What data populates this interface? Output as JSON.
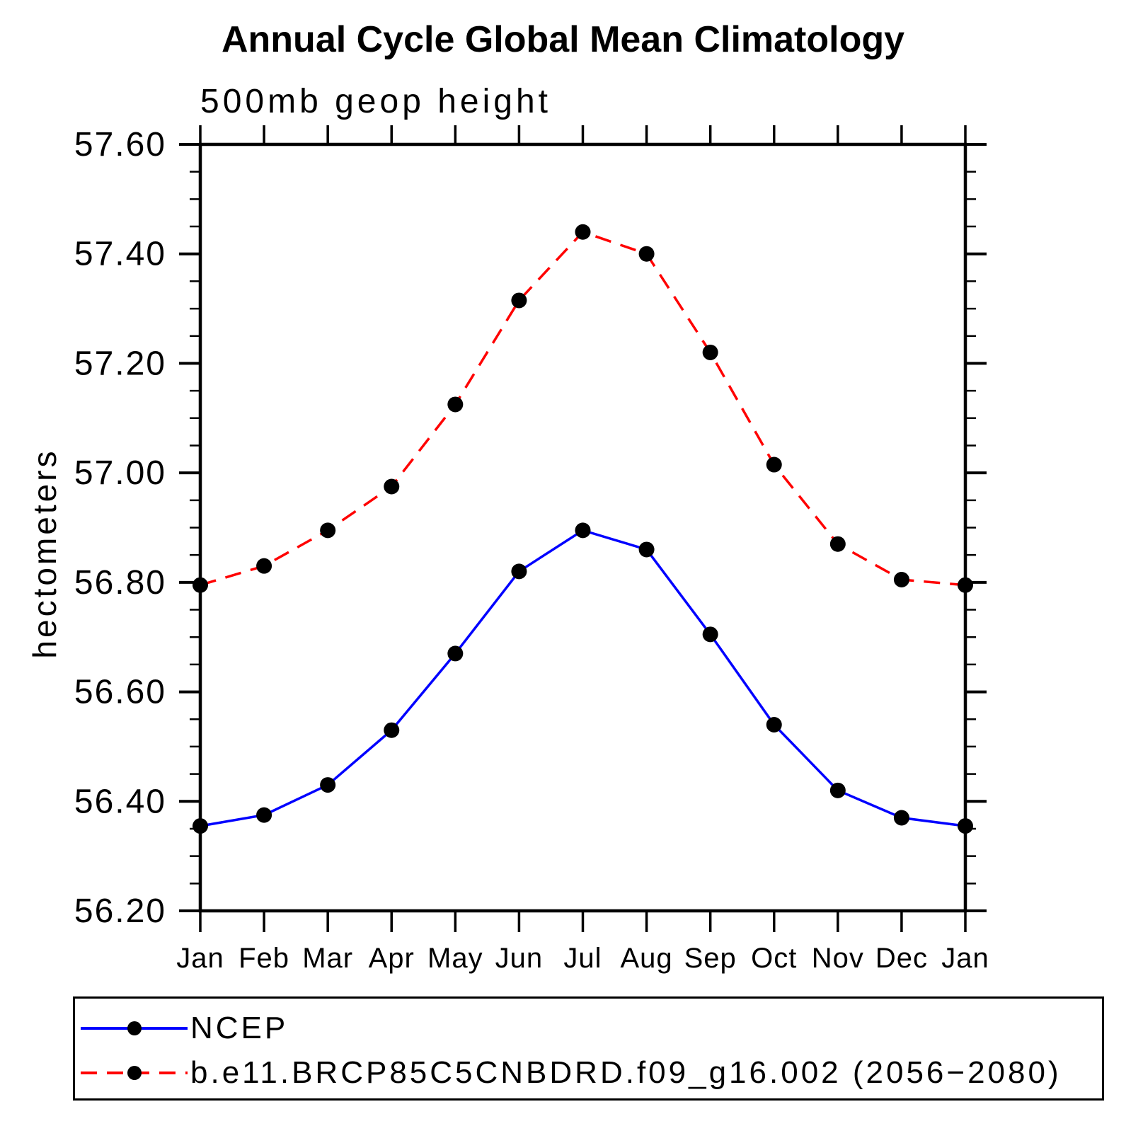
{
  "title": "Annual Cycle Global Mean Climatology",
  "chart_data": {
    "type": "line",
    "title": "Annual Cycle Global Mean Climatology",
    "subtitle": "500mb geop height",
    "ylabel": "hectometers",
    "xlabel": "",
    "x_categories": [
      "Jan",
      "Feb",
      "Mar",
      "Apr",
      "May",
      "Jun",
      "Jul",
      "Aug",
      "Sep",
      "Oct",
      "Nov",
      "Dec",
      "Jan"
    ],
    "ylim": [
      56.2,
      57.6
    ],
    "y_major_step": 0.2,
    "y_minor_step": 0.05,
    "y_tick_labels": [
      "56.20",
      "56.40",
      "56.60",
      "56.80",
      "57.00",
      "57.20",
      "57.40",
      "57.60"
    ],
    "grid": false,
    "axis_color": "#000000",
    "legend_position": "bottom",
    "series": [
      {
        "name": "NCEP",
        "color": "#0000ff",
        "line_style": "solid",
        "marker": "circle",
        "marker_color": "#000000",
        "values": [
          56.355,
          56.375,
          56.43,
          56.53,
          56.67,
          56.82,
          56.895,
          56.86,
          56.705,
          56.54,
          56.42,
          56.37,
          56.355
        ]
      },
      {
        "name": "b.e11.BRCP85C5CNBDRD.f09_g16.002 (2056−2080)",
        "color": "#ff0000",
        "line_style": "dashed",
        "marker": "circle",
        "marker_color": "#000000",
        "values": [
          56.795,
          56.83,
          56.895,
          56.975,
          57.125,
          57.315,
          57.44,
          57.4,
          57.22,
          57.015,
          56.87,
          56.805,
          56.795
        ]
      }
    ]
  }
}
